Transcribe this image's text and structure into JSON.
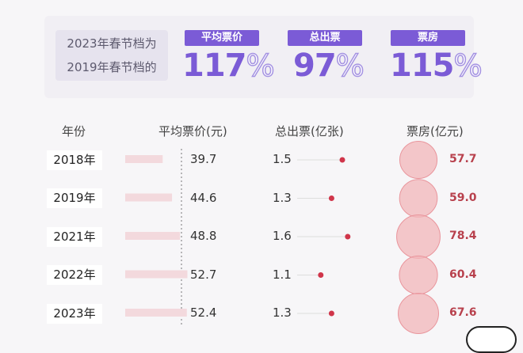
{
  "comparison": {
    "line1": "2023年春节档为",
    "line2": "2019年春节档的"
  },
  "metrics": [
    {
      "label": "平均票价",
      "value": "117",
      "unit": "%"
    },
    {
      "label": "总出票",
      "value": "97",
      "unit": "%"
    },
    {
      "label": "票房",
      "value": "115",
      "unit": "%"
    }
  ],
  "chart_data": {
    "type": "table",
    "columns": [
      "年份",
      "平均票价(元)",
      "总出票(亿张)",
      "票房(亿元)"
    ],
    "rows": [
      {
        "year": "2018年",
        "avg_price": 39.7,
        "tickets": 1.5,
        "box_office": 57.7
      },
      {
        "year": "2019年",
        "avg_price": 44.6,
        "tickets": 1.3,
        "box_office": 59.0
      },
      {
        "year": "2021年",
        "avg_price": 48.8,
        "tickets": 1.6,
        "box_office": 78.4
      },
      {
        "year": "2022年",
        "avg_price": 52.7,
        "tickets": 1.1,
        "box_office": 60.4
      },
      {
        "year": "2023年",
        "avg_price": 52.4,
        "tickets": 1.3,
        "box_office": 67.6
      }
    ],
    "avg_price_text": [
      "39.7",
      "44.6",
      "48.8",
      "52.7",
      "52.4"
    ],
    "tickets_text": [
      "1.5",
      "1.3",
      "1.6",
      "1.1",
      "1.3"
    ],
    "box_office_text": [
      "57.7",
      "59.0",
      "78.4",
      "60.4",
      "67.6"
    ]
  },
  "colors": {
    "accent": "#7b5bd6",
    "bar": "#f3d9dd",
    "dot": "#d0354a",
    "bubble": "#f2b6ba",
    "revenue_text": "#b8414d"
  }
}
